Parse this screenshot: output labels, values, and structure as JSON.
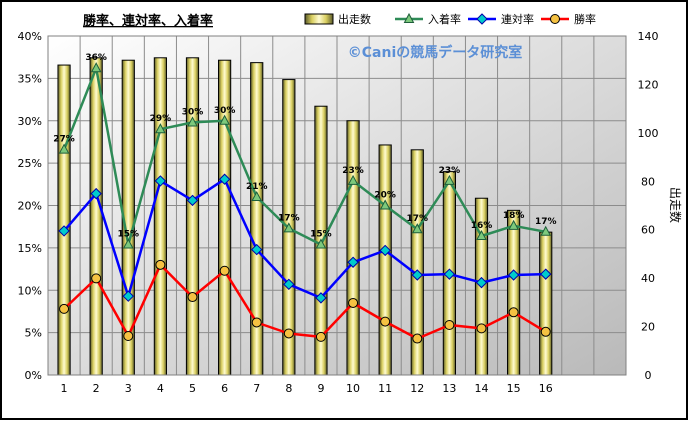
{
  "chart_data": {
    "type": "bar",
    "title": "勝率、連対率、入着率",
    "watermark": "©Caniの競馬データ研究室",
    "categories": [
      "1",
      "2",
      "3",
      "4",
      "5",
      "6",
      "7",
      "8",
      "9",
      "10",
      "11",
      "12",
      "13",
      "14",
      "15",
      "16"
    ],
    "x_extra_categories": 2,
    "y_left": {
      "ticks": [
        "0%",
        "5%",
        "10%",
        "15%",
        "20%",
        "25%",
        "30%",
        "35%",
        "40%"
      ],
      "ylim": [
        0,
        40
      ],
      "unit": "%"
    },
    "y_right": {
      "label": "出走数",
      "ticks": [
        "0",
        "20",
        "40",
        "60",
        "80",
        "100",
        "120",
        "140"
      ],
      "ylim": [
        0,
        140
      ]
    },
    "grid": true,
    "legend_position": "top",
    "series": [
      {
        "name": "出走数",
        "kind": "bar",
        "axis": "right",
        "color": "#e6dc6e",
        "values": [
          128,
          131,
          130,
          131,
          131,
          130,
          129,
          122,
          111,
          105,
          95,
          93,
          84,
          73,
          68,
          59
        ]
      },
      {
        "name": "入着率",
        "kind": "line",
        "axis": "left",
        "color": "#2e8b57",
        "values": [
          26.6,
          36.2,
          15.4,
          29.0,
          29.8,
          30.0,
          21.0,
          17.3,
          15.4,
          22.9,
          20.0,
          17.2,
          22.9,
          16.4,
          17.6,
          16.9
        ],
        "labels": [
          "27%",
          "36%",
          "15%",
          "29%",
          "30%",
          "30%",
          "21%",
          "17%",
          "15%",
          "23%",
          "20%",
          "17%",
          "23%",
          "16%",
          "18%",
          "17%"
        ]
      },
      {
        "name": "連対率",
        "kind": "line",
        "axis": "left",
        "color": "#0000ff",
        "values": [
          17.0,
          21.4,
          9.3,
          22.9,
          20.6,
          23.1,
          14.8,
          10.7,
          9.1,
          13.3,
          14.7,
          11.8,
          11.9,
          10.9,
          11.8,
          11.9
        ]
      },
      {
        "name": "勝率",
        "kind": "line",
        "axis": "left",
        "color": "#ff0000",
        "values": [
          7.8,
          11.4,
          4.6,
          13.0,
          9.2,
          12.3,
          6.2,
          4.9,
          4.5,
          8.5,
          6.3,
          4.3,
          5.9,
          5.5,
          7.4,
          5.1
        ]
      }
    ]
  }
}
